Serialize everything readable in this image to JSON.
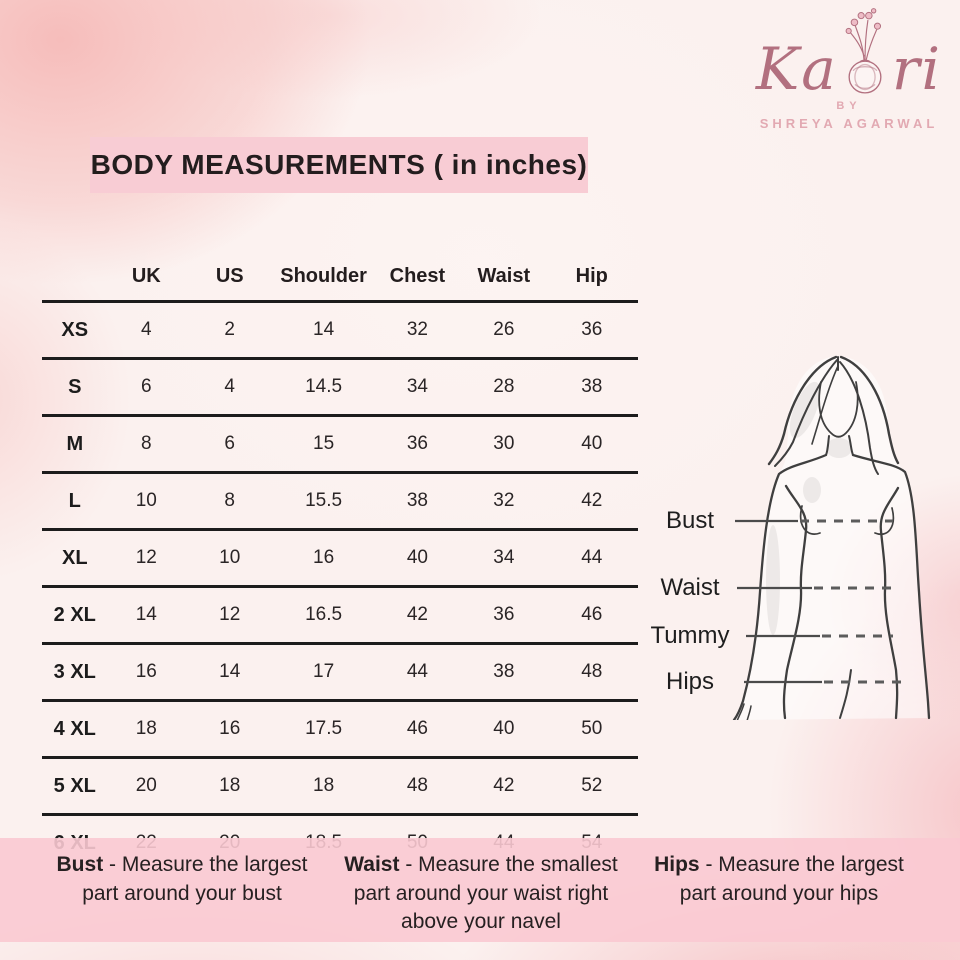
{
  "brand": {
    "name_prefix": "Ka",
    "name_suffix": "ri",
    "by_label": "BY",
    "owner_name": "SHREYA AGARWAL"
  },
  "title": "BODY MEASUREMENTS ( in inches)",
  "size_chart": {
    "columns": [
      "",
      "UK",
      "US",
      "Shoulder",
      "Chest",
      "Waist",
      "Hip"
    ],
    "rows": [
      {
        "size": "XS",
        "values": [
          "4",
          "2",
          "14",
          "32",
          "26",
          "36"
        ]
      },
      {
        "size": "S",
        "values": [
          "6",
          "4",
          "14.5",
          "34",
          "28",
          "38"
        ]
      },
      {
        "size": "M",
        "values": [
          "8",
          "6",
          "15",
          "36",
          "30",
          "40"
        ]
      },
      {
        "size": "L",
        "values": [
          "10",
          "8",
          "15.5",
          "38",
          "32",
          "42"
        ]
      },
      {
        "size": "XL",
        "values": [
          "12",
          "10",
          "16",
          "40",
          "34",
          "44"
        ]
      },
      {
        "size": "2 XL",
        "values": [
          "14",
          "12",
          "16.5",
          "42",
          "36",
          "46"
        ]
      },
      {
        "size": "3 XL",
        "values": [
          "16",
          "14",
          "17",
          "44",
          "38",
          "48"
        ]
      },
      {
        "size": "4 XL",
        "values": [
          "18",
          "16",
          "17.5",
          "46",
          "40",
          "50"
        ]
      },
      {
        "size": "5 XL",
        "values": [
          "20",
          "18",
          "18",
          "48",
          "42",
          "52"
        ]
      },
      {
        "size": "6 XL",
        "values": [
          "22",
          "20",
          "18.5",
          "50",
          "44",
          "54"
        ]
      }
    ]
  },
  "figure_labels": [
    "Bust",
    "Waist",
    "Tummy",
    "Hips"
  ],
  "measurement_notes": [
    {
      "term": "Bust",
      "text": "- Measure the largest part around your bust"
    },
    {
      "term": "Waist",
      "text": "- Measure the smallest part around your waist right above your navel"
    },
    {
      "term": "Hips",
      "text": "- Measure the largest part around your hips"
    }
  ],
  "colors": {
    "accent_pink": "#f8ccd4",
    "footer_pink": "#f9c9d1",
    "logo_rose": "#b2707f",
    "logo_light_pink": "#e2a9b2",
    "text_dark": "#231d1e",
    "line_black": "#1c1c1c"
  }
}
